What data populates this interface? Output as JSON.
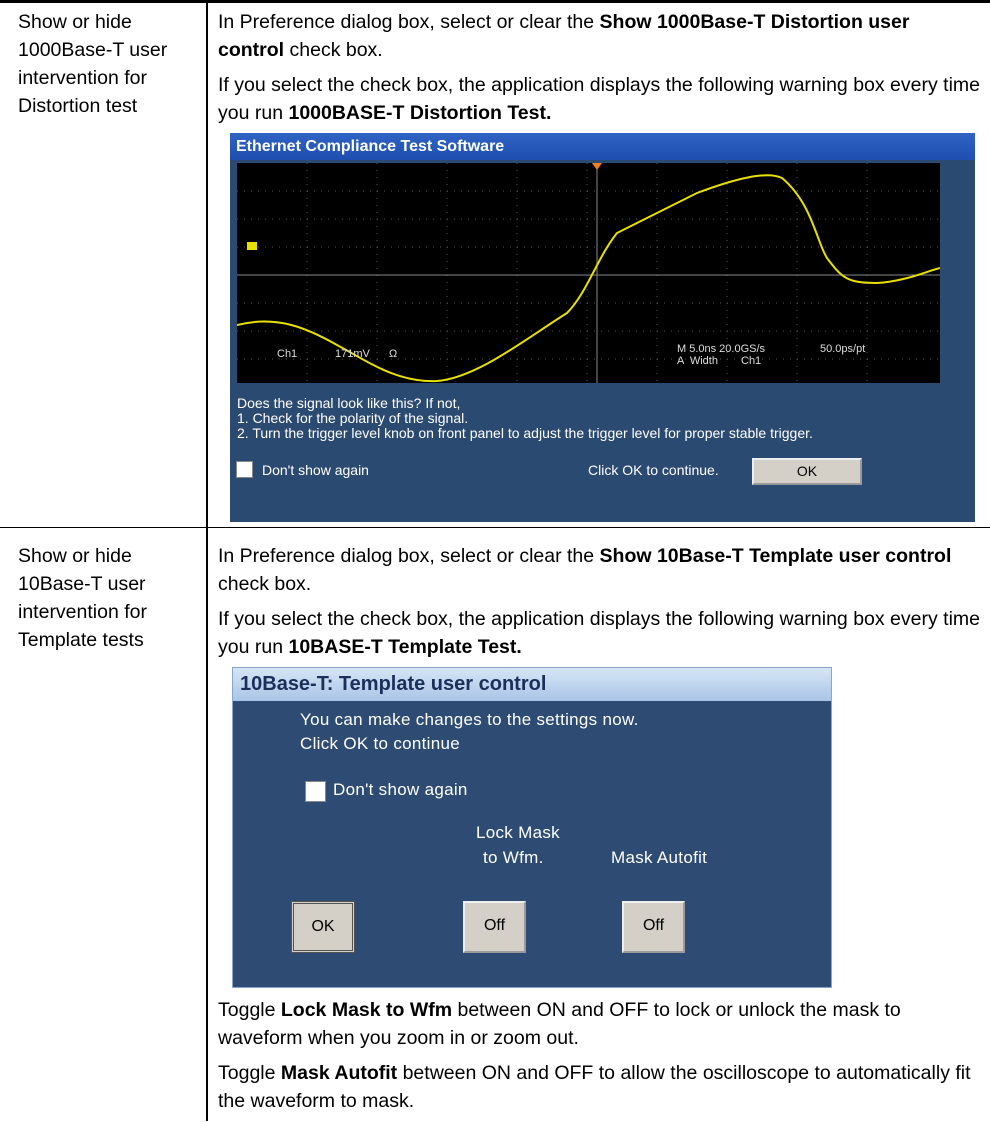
{
  "rows": [
    {
      "setting": "Show or hide 1000Base-T user intervention for Distortion test",
      "paragraphs": [
        [
          "In Preference dialog box, select or clear the ",
          "Show 1000Base-T Distortion user control",
          " check box."
        ],
        [
          "If you select the check box, the application displays the following warning box every time you run ",
          "1000BASE-T Distortion Test."
        ]
      ],
      "dialog": {
        "title": "Ethernet Compliance Test Software",
        "scope_labels": [
          "Ch1",
          "171mV",
          "Ω",
          "M 5.0ns 20.0GS/s",
          "A  Width",
          "Ch1",
          "50.0ps/pt"
        ],
        "message": [
          "Does the signal look like this? If not,",
          "1. Check for the polarity of the signal.",
          "2. Turn the trigger level knob on front panel to adjust the trigger level for proper stable trigger."
        ],
        "checkbox": "Don't show again",
        "prompt": "Click OK to continue.",
        "button": "OK"
      }
    },
    {
      "setting": "Show or hide 10Base-T user intervention for Template tests",
      "paragraphs": [
        [
          "In Preference dialog box, select or clear the ",
          "Show 10Base-T Template user control",
          " check box."
        ],
        [
          "If you select the check box, the application displays the following warning box every time you run ",
          "10BASE-T Template Test."
        ]
      ],
      "dialog": {
        "title": "10Base-T: Template user control",
        "message": [
          "You can make changes to the settings now.",
          "Click OK to continue"
        ],
        "checkbox": "Don't show again",
        "lock_label": [
          "Lock Mask",
          "to Wfm."
        ],
        "autofit_label": "Mask Autofit",
        "buttons": [
          "OK",
          "Off",
          "Off"
        ]
      },
      "notes": [
        [
          "Toggle ",
          "Lock Mask to Wfm",
          " between ON and OFF to lock or unlock the mask to waveform when you zoom in or zoom out."
        ],
        [
          "Toggle ",
          "Mask Autofit",
          " between ON and OFF to allow the oscilloscope to automatically fit the waveform to mask."
        ]
      ]
    }
  ]
}
